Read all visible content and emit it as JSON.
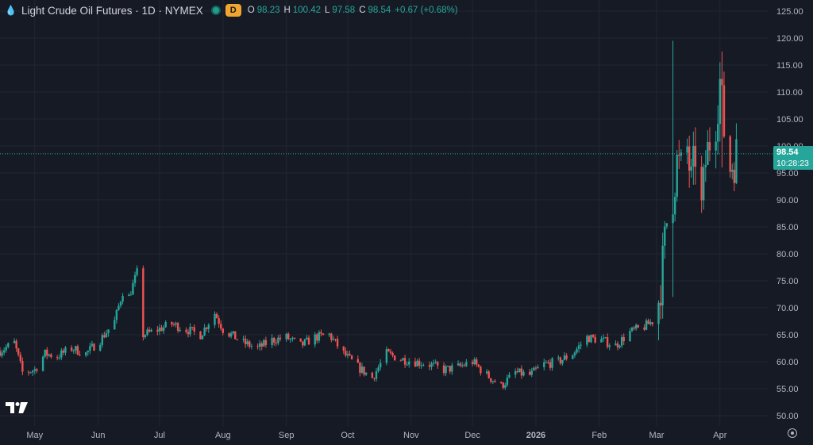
{
  "header": {
    "drop_icon": "💧",
    "title": "Light Crude Oil Futures · 1D · NYMEX",
    "interval_badge": "D",
    "ohlc": {
      "open_label": "O",
      "open": "98.23",
      "high_label": "H",
      "high": "100.42",
      "low_label": "L",
      "low": "97.58",
      "close_label": "C",
      "close": "98.54",
      "change": "+0.67 (+0.68%)"
    }
  },
  "last_price": {
    "value": "98.54",
    "countdown": "10:28:23"
  },
  "colors": {
    "up": "#26a69a",
    "down": "#ef5350",
    "background": "#161a25",
    "grid": "#232632"
  },
  "icons": {
    "logo": "tradingview-logo-icon",
    "settings": "gear-icon"
  },
  "chart_data": {
    "type": "candlestick",
    "y_range": [
      49,
      126
    ],
    "y_ticks": [
      "125.00",
      "120.00",
      "115.00",
      "110.00",
      "105.00",
      "100.00",
      "95.00",
      "90.00",
      "85.00",
      "80.00",
      "75.00",
      "70.00",
      "65.00",
      "60.00",
      "55.00",
      "50.00"
    ],
    "y_tick_values": [
      125,
      120,
      115,
      110,
      105,
      100,
      95,
      90,
      85,
      80,
      75,
      70,
      65,
      60,
      55,
      50
    ],
    "x_labels": [
      "May",
      "Jun",
      "Jul",
      "Aug",
      "Sep",
      "Oct",
      "Nov",
      "Dec",
      "2026",
      "Feb",
      "Mar",
      "Apr"
    ],
    "x_label_dates": [
      "2025-05-01",
      "2025-06-01",
      "2025-07-01",
      "2025-08-01",
      "2025-09-01",
      "2025-10-01",
      "2025-11-01",
      "2025-12-01",
      "2026-01-01",
      "2026-02-01",
      "2026-03-01",
      "2026-04-01"
    ],
    "x_range": [
      "2025-04-14",
      "2026-04-10"
    ],
    "last_price_line": 98.54,
    "close_series": {
      "dates": [
        "2025-04-14",
        "2025-04-21",
        "2025-04-25",
        "2025-05-01",
        "2025-05-06",
        "2025-05-12",
        "2025-05-19",
        "2025-05-26",
        "2025-06-02",
        "2025-06-09",
        "2025-06-13",
        "2025-06-16",
        "2025-06-20",
        "2025-06-23",
        "2025-06-27",
        "2025-07-07",
        "2025-07-14",
        "2025-07-21",
        "2025-07-28",
        "2025-08-01",
        "2025-08-11",
        "2025-08-18",
        "2025-08-25",
        "2025-09-01",
        "2025-09-08",
        "2025-09-15",
        "2025-09-22",
        "2025-09-29",
        "2025-10-06",
        "2025-10-13",
        "2025-10-20",
        "2025-10-27",
        "2025-11-03",
        "2025-11-10",
        "2025-11-17",
        "2025-11-24",
        "2025-12-01",
        "2025-12-08",
        "2025-12-15",
        "2025-12-22",
        "2025-12-29",
        "2026-01-05",
        "2026-01-12",
        "2026-01-19",
        "2026-01-26",
        "2026-02-02",
        "2026-02-09",
        "2026-02-16",
        "2026-02-23",
        "2026-02-27",
        "2026-03-02",
        "2026-03-04",
        "2026-03-06",
        "2026-03-09",
        "2026-03-11",
        "2026-03-13",
        "2026-03-16",
        "2026-03-18",
        "2026-03-20",
        "2026-03-23",
        "2026-03-25",
        "2026-03-27",
        "2026-03-30",
        "2026-04-01",
        "2026-04-03",
        "2026-04-06",
        "2026-04-08",
        "2026-04-09"
      ],
      "close": [
        62.0,
        63.5,
        58.0,
        58.5,
        61.5,
        61.0,
        62.5,
        61.5,
        64.0,
        67.5,
        73.0,
        72.0,
        76.5,
        65.0,
        65.5,
        67.0,
        66.0,
        65.0,
        69.0,
        66.0,
        63.5,
        62.5,
        64.0,
        64.5,
        63.0,
        64.5,
        65.0,
        61.5,
        59.0,
        57.0,
        61.5,
        60.5,
        60.0,
        59.5,
        58.5,
        59.0,
        60.0,
        57.5,
        55.5,
        58.0,
        57.5,
        59.5,
        60.0,
        61.5,
        64.5,
        64.0,
        63.0,
        65.5,
        66.5,
        67.5,
        71.5,
        78.0,
        86.0,
        91.0,
        97.0,
        95.5,
        99.5,
        93.0,
        98.5,
        88.0,
        97.0,
        101.0,
        105.0,
        112.0,
        103.0,
        96.0,
        97.5,
        98.54
      ]
    },
    "spikes": [
      {
        "date": "2026-03-09",
        "high": 119.5,
        "low": 72.0
      },
      {
        "date": "2026-04-02",
        "high": 117.5,
        "low": 96.0
      }
    ]
  }
}
